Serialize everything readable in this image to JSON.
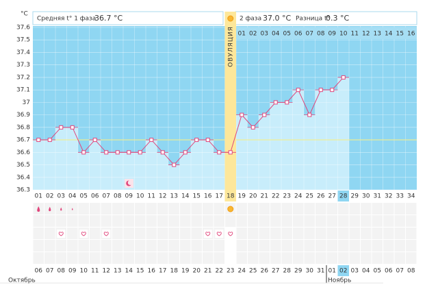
{
  "chart_data": {
    "type": "line",
    "y_unit": "°C",
    "phase1_label": "Средняя t° 1 фаза",
    "phase1_value": "36.7 °C",
    "phase2_label": "2 фаза",
    "phase2_value": "37.0 °C",
    "diff_label": "Разница t°",
    "diff_value": "0.3 °C",
    "ovulation_label": "ОВУЛЯЦИЯ",
    "ylim": [
      36.3,
      37.6
    ],
    "yticks": [
      36.3,
      36.4,
      36.5,
      36.6,
      36.7,
      36.8,
      36.9,
      37,
      37.1,
      37.2,
      37.3,
      37.4,
      37.5,
      37.6
    ],
    "coverline": 36.7,
    "categories": [
      "01",
      "02",
      "03",
      "04",
      "05",
      "06",
      "07",
      "08",
      "09",
      "10",
      "11",
      "12",
      "13",
      "14",
      "15",
      "16",
      "17",
      "18",
      "19",
      "20",
      "21",
      "22",
      "23",
      "24",
      "25",
      "26",
      "27",
      "28",
      "29",
      "30",
      "31",
      "32",
      "33",
      "34"
    ],
    "values": [
      36.7,
      36.7,
      36.8,
      36.8,
      36.6,
      36.7,
      36.6,
      36.6,
      36.6,
      36.6,
      36.7,
      36.6,
      36.5,
      36.6,
      36.7,
      36.7,
      36.6,
      36.6,
      36.9,
      36.8,
      36.9,
      37.0,
      37.0,
      37.1,
      36.9,
      37.1,
      37.1,
      37.2,
      null,
      null,
      null,
      null,
      null,
      null
    ],
    "phase2_days": [
      "01",
      "02",
      "03",
      "04",
      "05",
      "06",
      "07",
      "08",
      "09",
      "10",
      "11",
      "12",
      "13",
      "14",
      "15",
      "16"
    ],
    "dates": [
      "06",
      "07",
      "08",
      "09",
      "10",
      "11",
      "12",
      "13",
      "14",
      "15",
      "16",
      "17",
      "18",
      "19",
      "20",
      "21",
      "22",
      "23",
      "24",
      "25",
      "26",
      "27",
      "28",
      "29",
      "30",
      "31",
      "01",
      "02",
      "03",
      "04",
      "05",
      "06",
      "07",
      "08"
    ],
    "weekend": [
      true,
      false,
      false,
      false,
      false,
      false,
      true,
      true,
      false,
      false,
      false,
      false,
      false,
      true,
      true,
      false,
      false,
      false,
      false,
      false,
      true,
      true,
      false,
      false,
      false,
      false,
      false,
      false,
      true,
      false,
      false,
      false,
      false,
      false
    ],
    "months": [
      "Октябрь",
      "Ноябрь"
    ],
    "ovulation_day": "18",
    "today": "28",
    "moon_day": "09",
    "bleeding_days": [
      "01",
      "02",
      "03",
      "04"
    ],
    "intercourse_days": [
      "03",
      "05",
      "07",
      "16",
      "17",
      "18"
    ],
    "line_color": "#e0457b",
    "bar_color": "#c8edfb",
    "background_color": "#8fd6f2",
    "grid": true
  }
}
